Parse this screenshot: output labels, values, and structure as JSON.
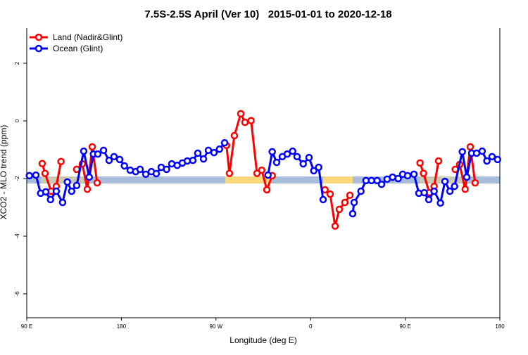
{
  "chart_data": {
    "type": "line",
    "title": "7.5S-2.5S April (Ver 10)   2015-01-01 to 2020-12-18",
    "xlabel": "Longitude (deg E)",
    "ylabel": "XCO2 - MLO trend (ppm)",
    "x_units": "unwrapped longitude, degrees east (90 = 90E, 180 = 180, 270 = 90W, 360 = 0, 450 = 90E, 540 = 180)",
    "xlim": [
      90,
      540
    ],
    "ylim": [
      -6.83,
      3.22
    ],
    "xticks": [
      {
        "x": 90,
        "label": "90 E"
      },
      {
        "x": 180,
        "label": "180"
      },
      {
        "x": 270,
        "label": "90 W"
      },
      {
        "x": 360,
        "label": "0"
      },
      {
        "x": 450,
        "label": "90 E"
      },
      {
        "x": 540,
        "label": "180"
      }
    ],
    "yticks": [
      {
        "y": 2,
        "label": "2"
      },
      {
        "y": 0,
        "label": "0"
      },
      {
        "y": -2,
        "label": "-2"
      },
      {
        "y": -4,
        "label": "-4"
      },
      {
        "y": -6,
        "label": "-6"
      }
    ],
    "grid": false,
    "legend": {
      "placement": "top-left",
      "entries": [
        {
          "label": "Land (Nadir&Glint)",
          "color": "#ff0000"
        },
        {
          "label": "Ocean (Glint)",
          "color": "#0000ff"
        }
      ]
    },
    "surface_band": {
      "y": -2.05,
      "colors": {
        "ocean": "#a7bddb",
        "land": "#fdd77c",
        "mixed": "#c9c9b4"
      },
      "segments": [
        [
          90,
          104,
          "ocean"
        ],
        [
          104,
          146,
          "mixed"
        ],
        [
          146,
          279,
          "ocean"
        ],
        [
          279,
          323,
          "land"
        ],
        [
          323,
          372,
          "ocean"
        ],
        [
          372,
          400,
          "land"
        ],
        [
          400,
          464,
          "ocean"
        ],
        [
          464,
          505,
          "mixed"
        ],
        [
          505,
          540,
          "ocean"
        ]
      ]
    },
    "series": [
      {
        "name": "Land (Nadir&Glint)",
        "color": "#ff0000",
        "segments": [
          [
            [
              104.7,
              -1.48
            ],
            [
              107.4,
              -1.82
            ],
            [
              113.2,
              -2.44
            ],
            [
              118.1,
              -2.27
            ],
            [
              122.6,
              -1.41
            ]
          ],
          [
            [
              137.5,
              -1.68
            ],
            [
              142.9,
              -1.49
            ],
            [
              147.6,
              -2.37
            ],
            [
              152.3,
              -0.9
            ],
            [
              157.0,
              -2.15
            ]
          ],
          [
            [
              280.0,
              -0.85
            ],
            [
              282.8,
              -1.82
            ],
            [
              287.5,
              -0.51
            ],
            [
              293.6,
              0.25
            ],
            [
              297.6,
              -0.05
            ],
            [
              303.4,
              0.01
            ],
            [
              309.0,
              -1.82
            ],
            [
              313.5,
              -1.71
            ],
            [
              318.4,
              -2.39
            ],
            [
              323.5,
              -1.9
            ]
          ],
          [
            [
              373.7,
              -2.39
            ],
            [
              378.6,
              -2.54
            ],
            [
              383.3,
              -3.65
            ],
            [
              387.3,
              -3.07
            ],
            [
              392.6,
              -2.83
            ],
            [
              397.4,
              -2.58
            ]
          ],
          [
            [
              464.1,
              -1.46
            ],
            [
              467.4,
              -1.82
            ],
            [
              473.0,
              -2.49
            ],
            [
              477.5,
              -2.27
            ],
            [
              481.7,
              -1.39
            ]
          ],
          [
            [
              497.6,
              -1.68
            ],
            [
              501.8,
              -1.51
            ],
            [
              507.0,
              -2.37
            ],
            [
              511.9,
              -0.9
            ],
            [
              516.5,
              -2.15
            ]
          ]
        ]
      },
      {
        "name": "Ocean (Glint)",
        "color": "#0000ff",
        "segments": [
          [
            [
              92.5,
              -1.9
            ],
            [
              98.7,
              -1.88
            ],
            [
              103.2,
              -2.51
            ],
            [
              108.1,
              -2.46
            ],
            [
              112.6,
              -2.73
            ],
            [
              118.1,
              -2.44
            ],
            [
              124.1,
              -2.83
            ],
            [
              128.6,
              -2.12
            ],
            [
              132.7,
              -2.44
            ],
            [
              137.5,
              -2.24
            ],
            [
              144.2,
              -1.05
            ],
            [
              149.4,
              -1.95
            ],
            [
              153.4,
              -1.15
            ],
            [
              157.6,
              -1.15
            ],
            [
              163.0,
              -1.02
            ],
            [
              168.3,
              -1.37
            ],
            [
              173.0,
              -1.24
            ],
            [
              178.4,
              -1.34
            ],
            [
              182.9,
              -1.56
            ],
            [
              188.4,
              -1.71
            ],
            [
              193.6,
              -1.76
            ],
            [
              197.8,
              -1.68
            ],
            [
              203.2,
              -1.85
            ],
            [
              208.5,
              -1.76
            ],
            [
              213.2,
              -1.83
            ],
            [
              217.9,
              -1.61
            ],
            [
              223.0,
              -1.68
            ],
            [
              227.9,
              -1.49
            ],
            [
              233.1,
              -1.54
            ],
            [
              238.0,
              -1.46
            ],
            [
              242.7,
              -1.39
            ],
            [
              248.0,
              -1.37
            ],
            [
              252.7,
              -1.12
            ],
            [
              258.1,
              -1.32
            ],
            [
              262.8,
              -1.02
            ],
            [
              268.1,
              -1.1
            ],
            [
              273.3,
              -0.98
            ],
            [
              278.2,
              -0.76
            ]
          ],
          [
            [
              319.5,
              -1.88
            ],
            [
              323.5,
              -1.07
            ],
            [
              327.7,
              -1.44
            ],
            [
              333.1,
              -1.24
            ],
            [
              337.8,
              -1.15
            ],
            [
              342.9,
              -1.05
            ],
            [
              347.1,
              -1.24
            ],
            [
              353.0,
              -1.49
            ],
            [
              358.5,
              -1.27
            ],
            [
              363.0,
              -1.73
            ],
            [
              367.7,
              -1.61
            ],
            [
              371.9,
              -2.73
            ]
          ],
          [
            [
              400.0,
              -3.22
            ],
            [
              401.4,
              -2.83
            ],
            [
              407.9,
              -2.44
            ],
            [
              412.7,
              -2.07
            ],
            [
              417.9,
              -2.07
            ],
            [
              423.3,
              -2.07
            ],
            [
              427.5,
              -2.2
            ],
            [
              432.8,
              -2.02
            ],
            [
              438.0,
              -1.95
            ],
            [
              443.3,
              -2.0
            ],
            [
              447.6,
              -1.85
            ],
            [
              452.3,
              -1.9
            ],
            [
              458.3,
              -1.85
            ],
            [
              463.0,
              -2.51
            ],
            [
              468.1,
              -2.49
            ],
            [
              472.4,
              -2.73
            ],
            [
              477.5,
              -2.44
            ],
            [
              483.5,
              -2.85
            ],
            [
              487.8,
              -2.1
            ],
            [
              492.5,
              -2.44
            ],
            [
              496.9,
              -2.27
            ],
            [
              504.3,
              -1.07
            ],
            [
              508.5,
              -1.95
            ],
            [
              513.2,
              -1.12
            ],
            [
              517.9,
              -1.12
            ],
            [
              523.2,
              -1.05
            ],
            [
              527.7,
              -1.39
            ],
            [
              532.6,
              -1.24
            ],
            [
              537.8,
              -1.34
            ]
          ]
        ]
      }
    ]
  }
}
